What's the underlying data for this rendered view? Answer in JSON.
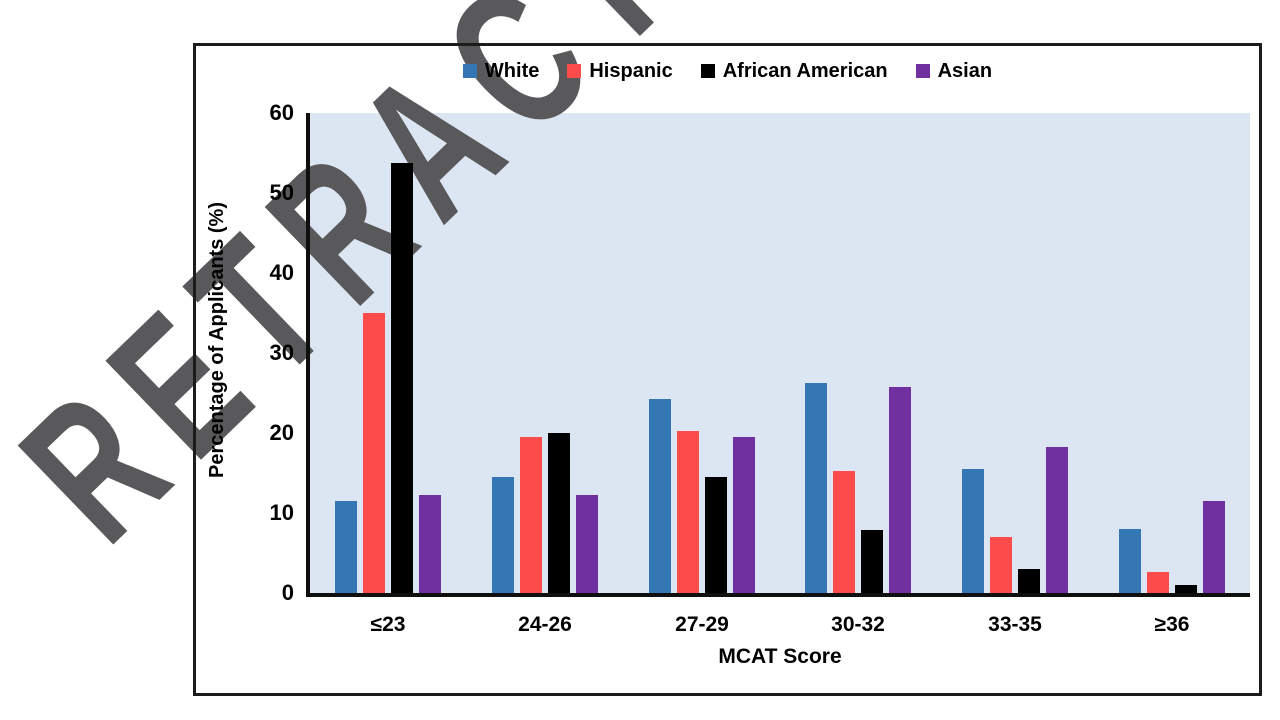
{
  "watermark": {
    "text": "RETRACTED",
    "color": "#59595b"
  },
  "chart_data": {
    "type": "bar",
    "title": "",
    "xlabel": "MCAT Score",
    "ylabel": "Percentage of Applicants (%)",
    "categories": [
      "≤23",
      "24-26",
      "27-29",
      "30-32",
      "33-35",
      "≥36"
    ],
    "series": [
      {
        "name": "White",
        "color": "#3576b5",
        "values": [
          11.5,
          14.5,
          24.3,
          26.3,
          15.5,
          8.0
        ]
      },
      {
        "name": "Hispanic",
        "color": "#fb4b4b",
        "values": [
          35.0,
          19.5,
          20.3,
          15.3,
          7.0,
          2.6
        ]
      },
      {
        "name": "African American",
        "color": "#000000",
        "values": [
          53.8,
          20.0,
          14.5,
          7.9,
          3.0,
          1.0
        ]
      },
      {
        "name": "Asian",
        "color": "#7030a0",
        "values": [
          12.3,
          12.2,
          19.5,
          25.8,
          18.3,
          11.5
        ]
      }
    ],
    "ylim": [
      0,
      60
    ],
    "yticks": [
      0,
      10,
      20,
      30,
      40,
      50,
      60
    ],
    "grid": false,
    "legend_position": "top-center",
    "plot_bg_color": "#dce6f2",
    "frame_border_color": "#1c1c1c",
    "axis_color": "#0f0f0f"
  }
}
